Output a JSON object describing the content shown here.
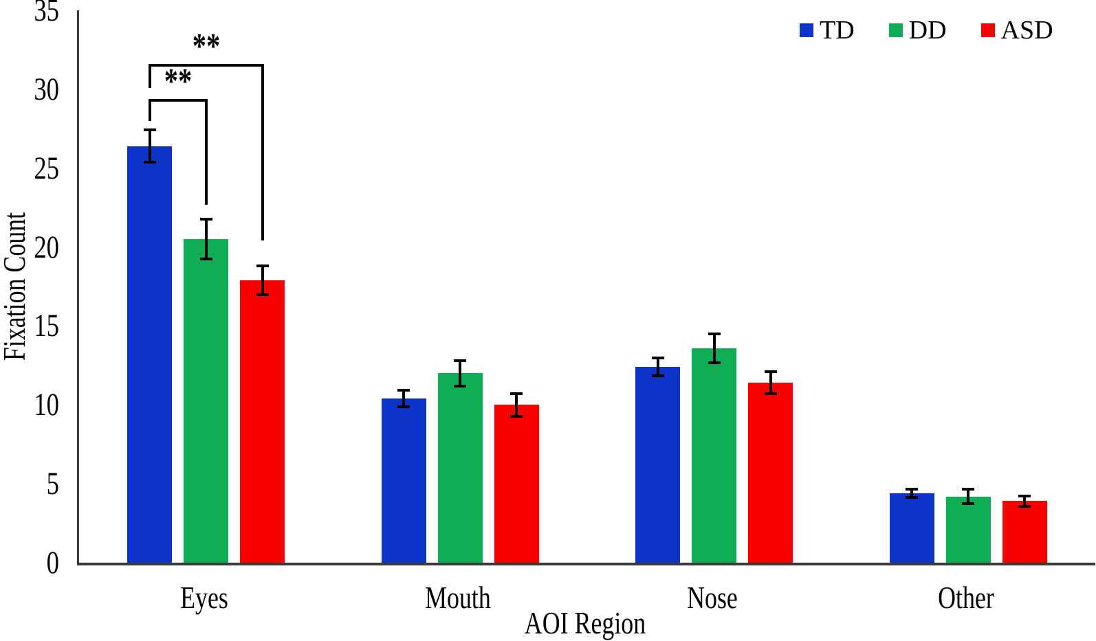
{
  "chart_data": {
    "type": "bar",
    "title": "",
    "xlabel": "AOI Region",
    "ylabel": "Fixation Count",
    "categories": [
      "Eyes",
      "Mouth",
      "Nose",
      "Other"
    ],
    "series": [
      {
        "name": "TD",
        "color": "#0D34C8",
        "values": [
          26.4,
          10.4,
          12.4,
          4.4
        ],
        "errors": [
          1.1,
          0.6,
          0.65,
          0.35
        ]
      },
      {
        "name": "DD",
        "color": "#0FAE54",
        "values": [
          20.5,
          12.0,
          13.6,
          4.2
        ],
        "errors": [
          1.35,
          0.9,
          1.0,
          0.55
        ]
      },
      {
        "name": "ASD",
        "color": "#FA0000",
        "values": [
          17.9,
          10.0,
          11.4,
          3.9
        ],
        "errors": [
          1.0,
          0.8,
          0.8,
          0.4
        ]
      }
    ],
    "ylim": [
      0,
      35
    ],
    "yticks": [
      0,
      5,
      10,
      15,
      20,
      25,
      30,
      35
    ],
    "grid": false,
    "error_bars": true,
    "legend_position": "top-right",
    "significance_brackets": [
      {
        "group": "Eyes",
        "between": [
          "TD",
          "DD"
        ],
        "label": "**",
        "y": 29.4,
        "left_drop_to": 28.0,
        "right_drop_to": 22.7
      },
      {
        "group": "Eyes",
        "between": [
          "TD",
          "ASD"
        ],
        "label": "**",
        "y": 31.6,
        "left_drop_to": 30.1,
        "right_drop_to": 20.4
      }
    ]
  },
  "colors": {
    "axis": "#3a3a3a",
    "error_bar": "#000000",
    "text": "#000000",
    "background": "#ffffff"
  }
}
